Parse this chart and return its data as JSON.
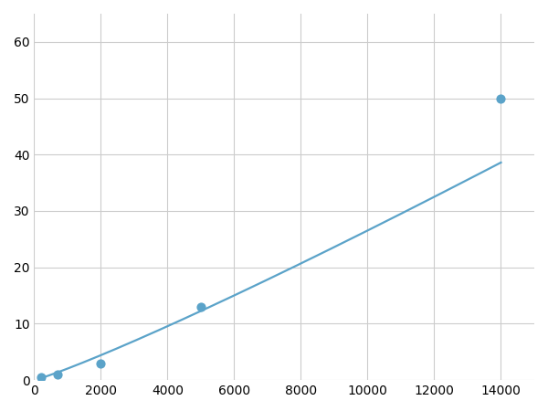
{
  "x": [
    200,
    700,
    2000,
    5000,
    14000
  ],
  "y": [
    0.5,
    1.0,
    3.0,
    13.0,
    50.0
  ],
  "line_color": "#5ba3c9",
  "marker_color": "#5ba3c9",
  "marker_size": 6,
  "linewidth": 1.6,
  "xlim": [
    0,
    15000
  ],
  "ylim": [
    0,
    65
  ],
  "xticks": [
    0,
    2000,
    4000,
    6000,
    8000,
    10000,
    12000,
    14000
  ],
  "yticks": [
    0,
    10,
    20,
    30,
    40,
    50,
    60
  ],
  "grid_color": "#cccccc",
  "background_color": "#ffffff",
  "tick_fontsize": 10
}
